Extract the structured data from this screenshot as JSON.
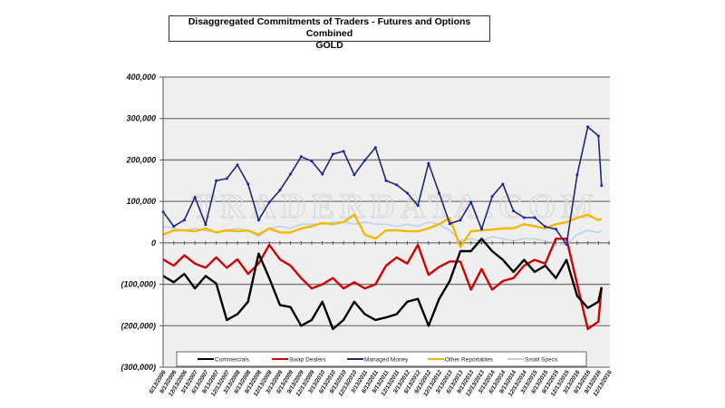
{
  "chart_data": {
    "type": "line",
    "title": "Disaggregated Commitments of Traders - Futures and Options Combined",
    "subtitle": "GOLD",
    "watermark": "TRADERDATA.COM",
    "xlabel": "",
    "ylabel": "",
    "ylim": [
      -300000,
      400000
    ],
    "yticks": [
      400000,
      300000,
      200000,
      100000,
      0,
      -100000,
      -200000,
      -300000
    ],
    "ytick_labels": [
      "400,000",
      "300,000",
      "200,000",
      "100,000",
      "0",
      "(100,000)",
      "(200,000)",
      "(300,000)"
    ],
    "grid": true,
    "legend_position": "bottom-inside",
    "x_unit": "quarters since 6/13/2006",
    "xtick_labels": [
      "6/13/2006",
      "9/13/2006",
      "12/13/2006",
      "3/13/2007",
      "6/13/2007",
      "9/13/2007",
      "12/13/2007",
      "3/13/2008",
      "6/13/2008",
      "9/13/2008",
      "12/13/2008",
      "3/13/2009",
      "6/13/2009",
      "9/13/2009",
      "12/13/2009",
      "3/13/2010",
      "6/13/2010",
      "9/13/2010",
      "12/13/2010",
      "3/13/2011",
      "6/13/2011",
      "9/13/2011",
      "12/13/2011",
      "3/13/2012",
      "6/13/2012",
      "9/13/2012",
      "12/13/2012",
      "3/13/2013",
      "6/13/2013",
      "9/13/2013",
      "12/13/2013",
      "3/13/2014",
      "6/13/2014",
      "9/13/2014",
      "12/13/2014",
      "3/13/2015",
      "6/13/2015",
      "9/13/2015",
      "12/13/2015",
      "3/13/2016",
      "6/13/2016",
      "9/13/2016",
      "12/13/2016"
    ],
    "x": [
      0,
      1,
      2,
      3,
      4,
      5,
      6,
      7,
      8,
      9,
      10,
      11,
      12,
      13,
      14,
      15,
      16,
      17,
      18,
      19,
      20,
      21,
      22,
      23,
      24,
      25,
      26,
      27,
      28,
      29,
      30,
      31,
      32,
      33,
      34,
      35,
      36,
      37,
      38,
      39,
      40,
      41,
      41.3
    ],
    "series": [
      {
        "name": "Commercials",
        "color": "#000000",
        "values": [
          -80000,
          -95000,
          -75000,
          -110000,
          -80000,
          -98000,
          -186000,
          -172000,
          -142000,
          -26000,
          -85000,
          -150000,
          -155000,
          -200000,
          -186000,
          -142000,
          -208000,
          -186000,
          -142000,
          -172000,
          -186000,
          -180000,
          -172000,
          -142000,
          -135000,
          -200000,
          -135000,
          -92000,
          -20000,
          -20000,
          10000,
          -20000,
          -41000,
          -70000,
          -41000,
          -70000,
          -55000,
          -85000,
          -41000,
          -128000,
          -157000,
          -142000,
          -107000
        ]
      },
      {
        "name": "Swap Dealers",
        "color": "#d00000",
        "values": [
          -40000,
          -55000,
          -30000,
          -50000,
          -60000,
          -35000,
          -60000,
          -40000,
          -75000,
          -50000,
          -5000,
          -40000,
          -55000,
          -85000,
          -110000,
          -100000,
          -85000,
          -110000,
          -95000,
          -110000,
          -100000,
          -55000,
          -35000,
          -50000,
          -5000,
          -77000,
          -58000,
          -45000,
          -45000,
          -113000,
          -63000,
          -113000,
          -92000,
          -85000,
          -55000,
          -41000,
          -50000,
          10000,
          10000,
          -100000,
          -208000,
          -190000,
          -107000
        ]
      },
      {
        "name": "Managed Money",
        "color": "#1f2a6e",
        "marker_color": "#1020d0",
        "values": [
          75000,
          40000,
          55000,
          110000,
          44000,
          150000,
          155000,
          188000,
          142000,
          55000,
          98000,
          127000,
          166000,
          208000,
          197000,
          166000,
          214000,
          221000,
          164000,
          199000,
          230000,
          150000,
          140000,
          120000,
          90000,
          192000,
          120000,
          46000,
          55000,
          98000,
          33000,
          112000,
          142000,
          77000,
          61000,
          61000,
          39000,
          33000,
          -4000,
          164000,
          280000,
          258000,
          138000
        ]
      },
      {
        "name": "Other Reportables",
        "color": "#f5b800",
        "values": [
          20000,
          30000,
          30000,
          28000,
          35000,
          25000,
          30000,
          28000,
          30000,
          20000,
          35000,
          25000,
          25000,
          35000,
          40000,
          48000,
          45000,
          50000,
          68000,
          20000,
          10000,
          30000,
          30000,
          28000,
          28000,
          35000,
          45000,
          60000,
          -10000,
          28000,
          30000,
          32000,
          35000,
          35000,
          45000,
          40000,
          35000,
          45000,
          50000,
          60000,
          68000,
          55000,
          58000
        ]
      },
      {
        "name": "Small Specs",
        "color": "#b8d4ea",
        "values": [
          40000,
          35000,
          30000,
          35000,
          30000,
          25000,
          30000,
          35000,
          30000,
          15000,
          35000,
          40000,
          35000,
          45000,
          45000,
          45000,
          50000,
          50000,
          45000,
          50000,
          45000,
          45000,
          40000,
          45000,
          40000,
          50000,
          45000,
          30000,
          5000,
          10000,
          5000,
          15000,
          10000,
          5000,
          10000,
          10000,
          5000,
          0,
          -5000,
          20000,
          30000,
          25000,
          30000
        ]
      }
    ]
  }
}
